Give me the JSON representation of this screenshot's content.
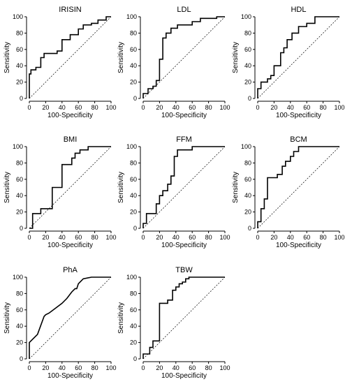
{
  "chart_data": [
    {
      "type": "line",
      "title": "IRISIN",
      "xlabel": "100-Specificity",
      "ylabel": "Sensitivity",
      "xlim": [
        0,
        100
      ],
      "ylim": [
        0,
        100
      ],
      "xticks": [
        "0",
        "20",
        "40",
        "60",
        "80",
        "100"
      ],
      "yticks": [
        "0",
        "20",
        "40",
        "60",
        "80",
        "100"
      ],
      "reference_line": "diagonal",
      "x": [
        0,
        0,
        2,
        2,
        8,
        8,
        14,
        14,
        18,
        18,
        34,
        34,
        40,
        40,
        50,
        50,
        60,
        60,
        66,
        66,
        76,
        76,
        84,
        84,
        94,
        94,
        100
      ],
      "y": [
        0,
        30,
        30,
        35,
        35,
        38,
        38,
        50,
        50,
        55,
        55,
        58,
        58,
        72,
        72,
        78,
        78,
        85,
        85,
        90,
        90,
        92,
        92,
        96,
        96,
        100,
        100
      ]
    },
    {
      "type": "line",
      "title": "LDL",
      "xlabel": "100-Specificity",
      "ylabel": "Sensitivity",
      "xlim": [
        0,
        100
      ],
      "ylim": [
        0,
        100
      ],
      "xticks": [
        "0",
        "20",
        "40",
        "60",
        "80",
        "100"
      ],
      "yticks": [
        "0",
        "20",
        "40",
        "60",
        "80",
        "100"
      ],
      "reference_line": "diagonal",
      "x": [
        0,
        0,
        6,
        6,
        12,
        12,
        16,
        16,
        20,
        20,
        24,
        24,
        28,
        28,
        34,
        34,
        42,
        42,
        60,
        60,
        70,
        70,
        90,
        90,
        100
      ],
      "y": [
        0,
        6,
        6,
        12,
        12,
        15,
        15,
        22,
        22,
        48,
        48,
        74,
        74,
        80,
        80,
        86,
        86,
        90,
        90,
        94,
        94,
        98,
        98,
        100,
        100
      ]
    },
    {
      "type": "line",
      "title": "HDL",
      "xlabel": "100-Specificity",
      "ylabel": "Sensitivity",
      "xlim": [
        0,
        100
      ],
      "ylim": [
        0,
        100
      ],
      "xticks": [
        "0",
        "20",
        "40",
        "60",
        "80",
        "100"
      ],
      "yticks": [
        "0",
        "20",
        "40",
        "60",
        "80",
        "100"
      ],
      "reference_line": "diagonal",
      "x": [
        0,
        0,
        4,
        4,
        12,
        12,
        16,
        16,
        20,
        20,
        28,
        28,
        32,
        32,
        36,
        36,
        42,
        42,
        50,
        50,
        60,
        60,
        70,
        70,
        100
      ],
      "y": [
        0,
        12,
        12,
        20,
        20,
        24,
        24,
        28,
        28,
        40,
        40,
        56,
        56,
        62,
        62,
        72,
        72,
        80,
        80,
        88,
        88,
        92,
        92,
        100,
        100
      ]
    },
    {
      "type": "line",
      "title": "BMI",
      "xlabel": "100-Specificity",
      "ylabel": "Sensitivity",
      "xlim": [
        0,
        100
      ],
      "ylim": [
        0,
        100
      ],
      "xticks": [
        "0",
        "20",
        "40",
        "60",
        "80",
        "100"
      ],
      "yticks": [
        "0",
        "20",
        "40",
        "60",
        "80",
        "100"
      ],
      "reference_line": "diagonal",
      "x": [
        0,
        4,
        4,
        14,
        14,
        28,
        28,
        40,
        40,
        52,
        52,
        56,
        56,
        62,
        62,
        72,
        72,
        100
      ],
      "y": [
        0,
        0,
        18,
        18,
        24,
        24,
        50,
        50,
        78,
        78,
        86,
        86,
        92,
        92,
        96,
        96,
        100,
        100
      ]
    },
    {
      "type": "line",
      "title": "FFM",
      "xlabel": "100-Specificity",
      "ylabel": "Sensitivity",
      "xlim": [
        0,
        100
      ],
      "ylim": [
        0,
        100
      ],
      "xticks": [
        "0",
        "20",
        "40",
        "60",
        "80",
        "100"
      ],
      "yticks": [
        "0",
        "20",
        "40",
        "60",
        "80",
        "100"
      ],
      "reference_line": "diagonal",
      "x": [
        0,
        0,
        4,
        4,
        16,
        16,
        20,
        20,
        24,
        24,
        30,
        30,
        34,
        34,
        38,
        38,
        42,
        42,
        60,
        60,
        100
      ],
      "y": [
        0,
        6,
        6,
        18,
        18,
        30,
        30,
        40,
        40,
        46,
        46,
        54,
        54,
        64,
        64,
        88,
        88,
        96,
        96,
        100,
        100
      ]
    },
    {
      "type": "line",
      "title": "BCM",
      "xlabel": "100-Specificity",
      "ylabel": "Sensitivity",
      "xlim": [
        0,
        100
      ],
      "ylim": [
        0,
        100
      ],
      "xticks": [
        "0",
        "20",
        "40",
        "60",
        "80",
        "100"
      ],
      "yticks": [
        "0",
        "20",
        "40",
        "60",
        "80",
        "100"
      ],
      "reference_line": "diagonal",
      "x": [
        0,
        0,
        4,
        4,
        8,
        8,
        12,
        12,
        24,
        24,
        30,
        30,
        34,
        34,
        40,
        40,
        44,
        44,
        50,
        50,
        100
      ],
      "y": [
        0,
        8,
        8,
        24,
        24,
        36,
        36,
        62,
        62,
        66,
        66,
        76,
        76,
        82,
        82,
        88,
        88,
        94,
        94,
        100,
        100
      ]
    },
    {
      "type": "line",
      "title": "PhA",
      "xlabel": "100-Specificity",
      "ylabel": "Sensitivity",
      "xlim": [
        0,
        100
      ],
      "ylim": [
        0,
        100
      ],
      "xticks": [
        "0",
        "20",
        "40",
        "60",
        "80",
        "100"
      ],
      "yticks": [
        "0",
        "20",
        "40",
        "60",
        "80",
        "100"
      ],
      "reference_line": "diagonal",
      "x": [
        0,
        0,
        10,
        18,
        20,
        24,
        32,
        40,
        46,
        52,
        56,
        58,
        60,
        66,
        76,
        80,
        100
      ],
      "y": [
        0,
        20,
        30,
        52,
        54,
        56,
        62,
        68,
        74,
        82,
        86,
        86,
        92,
        98,
        100,
        100,
        100
      ]
    },
    {
      "type": "line",
      "title": "TBW",
      "xlabel": "100-Specificity",
      "ylabel": "Sensitivity",
      "xlim": [
        0,
        100
      ],
      "ylim": [
        0,
        100
      ],
      "xticks": [
        "0",
        "20",
        "40",
        "60",
        "80",
        "100"
      ],
      "yticks": [
        "0",
        "20",
        "40",
        "60",
        "80",
        "100"
      ],
      "reference_line": "diagonal",
      "x": [
        0,
        0,
        8,
        8,
        12,
        12,
        20,
        20,
        30,
        30,
        36,
        36,
        40,
        40,
        44,
        44,
        48,
        48,
        52,
        52,
        56,
        56,
        100
      ],
      "y": [
        0,
        6,
        6,
        14,
        14,
        22,
        22,
        68,
        68,
        72,
        72,
        84,
        84,
        88,
        88,
        92,
        92,
        94,
        94,
        98,
        98,
        100,
        100
      ]
    }
  ]
}
